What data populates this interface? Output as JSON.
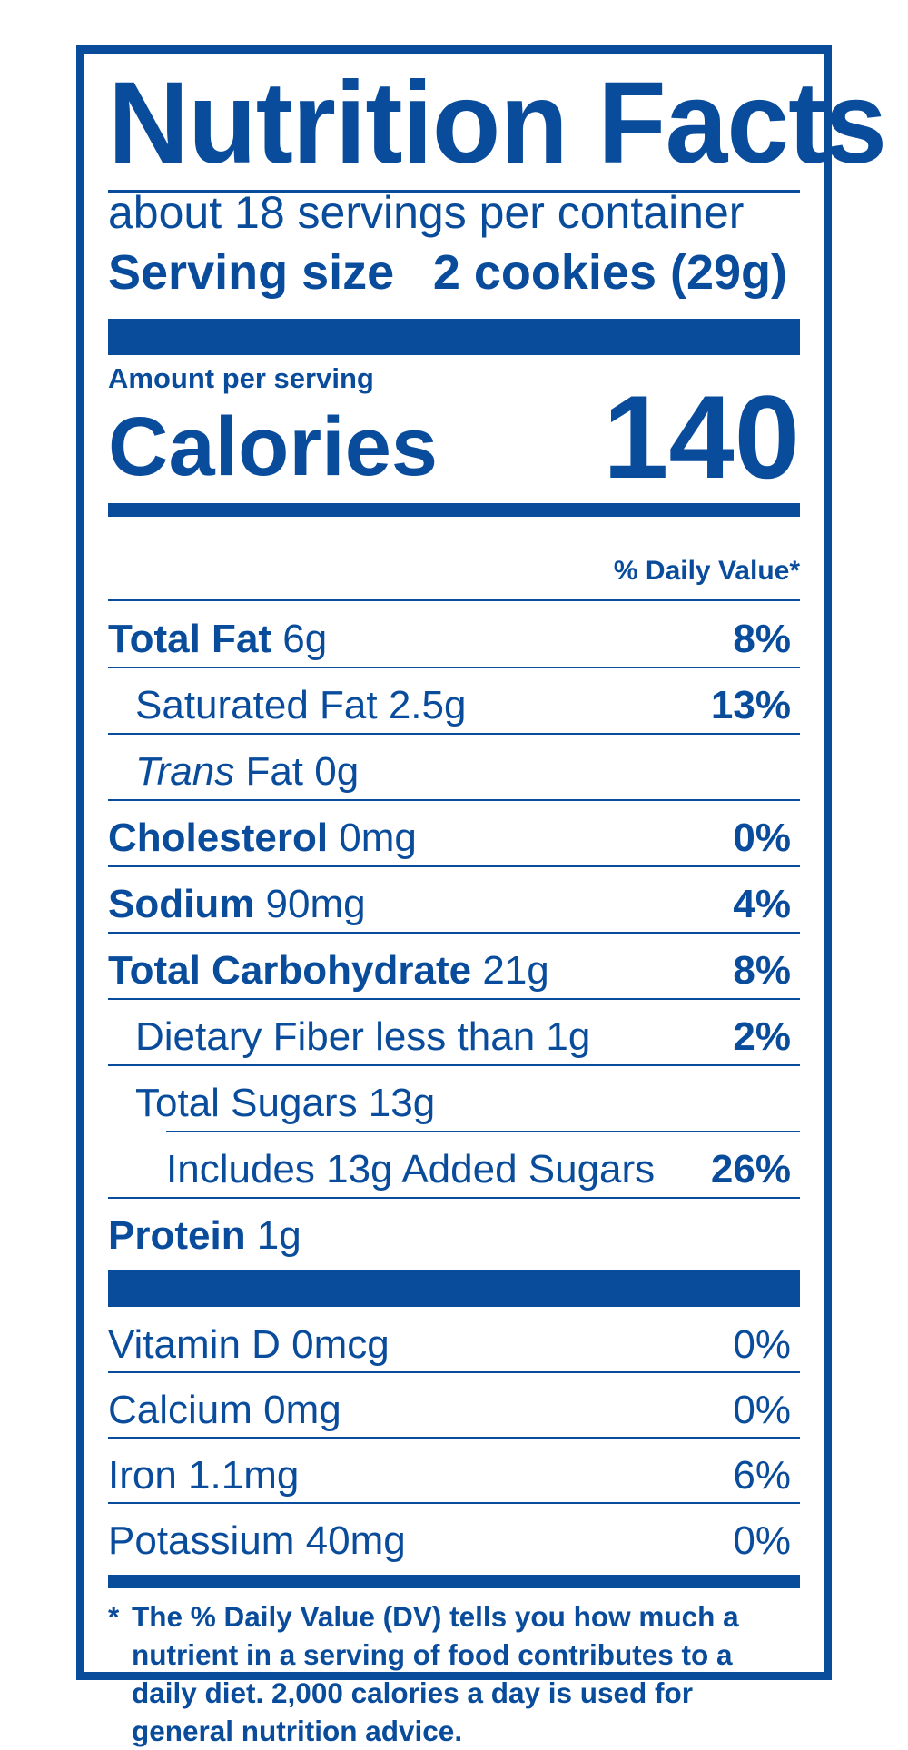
{
  "title": "Nutrition Facts",
  "servings_per_container": "about 18 servings per container",
  "serving_size": {
    "label": "Serving size",
    "value": "2 cookies (29g)"
  },
  "amount_per_serving": "Amount per serving",
  "calories": {
    "label": "Calories",
    "value": "140"
  },
  "daily_value_header": "% Daily Value*",
  "nutrients": [
    {
      "bold": "Total Fat",
      "amount": " 6g",
      "dv": "8%"
    },
    {
      "bold": "",
      "amount": "Saturated Fat 2.5g",
      "dv": "13%"
    },
    {
      "italic": "Trans",
      "amount": " Fat 0g",
      "dv": ""
    },
    {
      "bold": "Cholesterol",
      "amount": " 0mg",
      "dv": "0%"
    },
    {
      "bold": "Sodium",
      "amount": " 90mg",
      "dv": "4%"
    },
    {
      "bold": "Total Carbohydrate",
      "amount": " 21g",
      "dv": "8%"
    },
    {
      "bold": "",
      "amount": "Dietary Fiber less than 1g",
      "dv": "2%"
    },
    {
      "bold": "",
      "amount": "Total Sugars 13g",
      "dv": ""
    },
    {
      "bold": "",
      "amount": "Includes 13g Added Sugars",
      "dv": "26%"
    },
    {
      "bold": "Protein",
      "amount": " 1g",
      "dv": ""
    }
  ],
  "vitamins": [
    {
      "name": "Vitamin D 0mcg",
      "dv": "0%"
    },
    {
      "name": "Calcium 0mg",
      "dv": "0%"
    },
    {
      "name": "Iron 1.1mg",
      "dv": "6%"
    },
    {
      "name": "Potassium 40mg",
      "dv": "0%"
    }
  ],
  "footnote": {
    "star": "*",
    "text": "The % Daily Value (DV) tells you how much a nutrient in a serving of food contributes to a daily diet. 2,000 calories a day is used for general nutrition advice."
  },
  "colors": {
    "ink": "#0a4c9c",
    "background": "#ffffff"
  }
}
